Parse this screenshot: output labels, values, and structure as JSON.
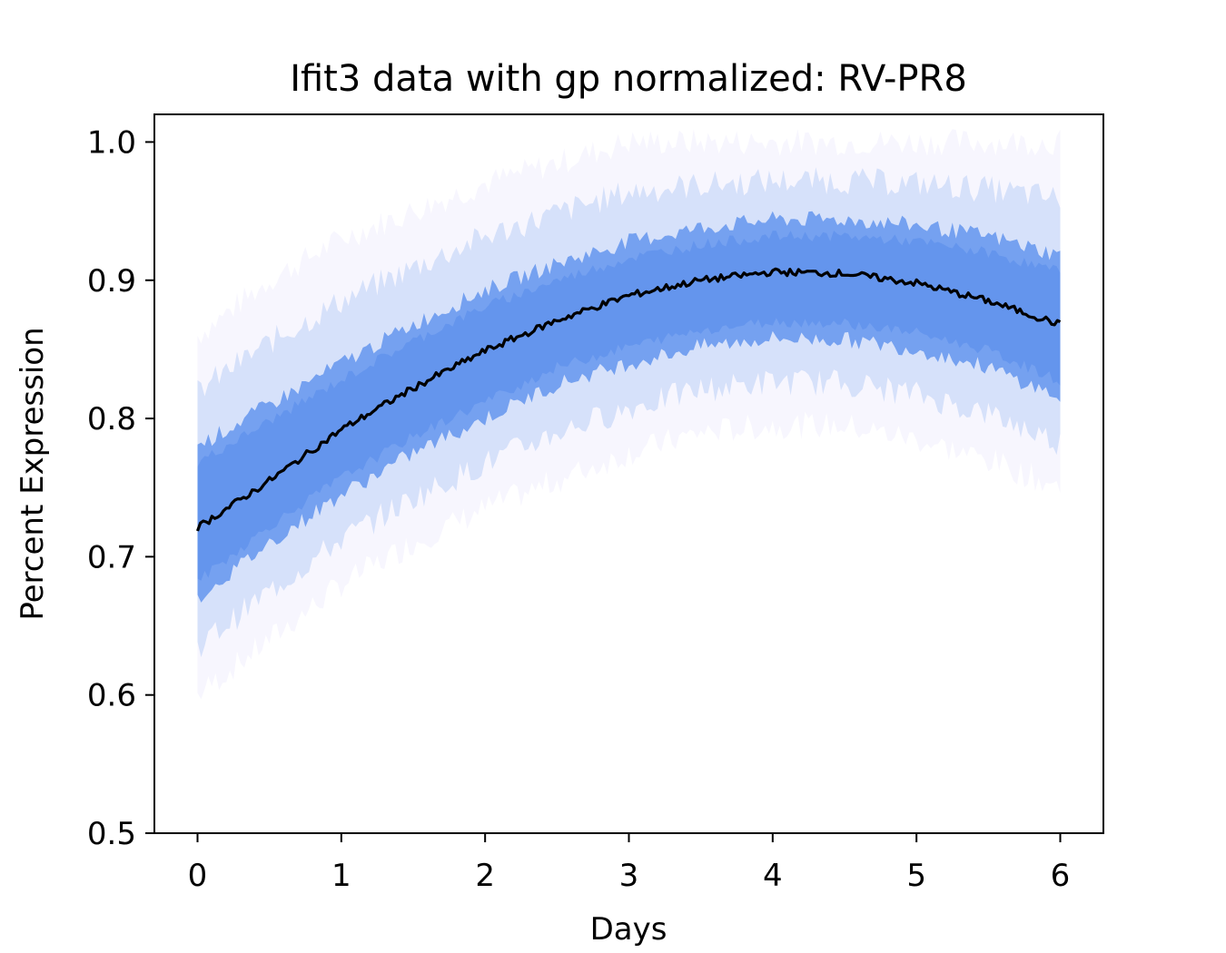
{
  "chart_data": {
    "type": "line",
    "title": "Ifit3 data with gp normalized: RV-PR8",
    "xlabel": "Days",
    "ylabel": "Percent Expression",
    "xlim": [
      -0.3,
      6.3
    ],
    "ylim": [
      0.5,
      1.02
    ],
    "x_ticks": [
      "0",
      "1",
      "2",
      "3",
      "4",
      "5",
      "6"
    ],
    "y_ticks": [
      "0.5",
      "0.6",
      "0.7",
      "0.8",
      "0.9",
      "1.0"
    ],
    "grid": false,
    "colors": {
      "band": "#6495ed",
      "band_faint": "#7b68ee",
      "mean": "#000000"
    },
    "mean_curve": {
      "x": [
        0,
        0.5,
        1,
        1.5,
        2,
        2.5,
        3,
        3.5,
        4,
        4.5,
        5,
        5.5,
        6
      ],
      "y": [
        0.721,
        0.755,
        0.792,
        0.822,
        0.849,
        0.871,
        0.889,
        0.9,
        0.906,
        0.905,
        0.898,
        0.885,
        0.868
      ]
    },
    "band_core": {
      "x": [
        0,
        0.5,
        1,
        1.5,
        2,
        2.5,
        3,
        3.5,
        4,
        4.5,
        5,
        5.5,
        6
      ],
      "lower": [
        0.67,
        0.71,
        0.745,
        0.775,
        0.8,
        0.825,
        0.84,
        0.852,
        0.858,
        0.857,
        0.85,
        0.837,
        0.815
      ],
      "upper": [
        0.78,
        0.81,
        0.84,
        0.868,
        0.893,
        0.912,
        0.928,
        0.938,
        0.944,
        0.944,
        0.94,
        0.932,
        0.918
      ]
    },
    "band_outer": {
      "x": [
        0,
        0.5,
        1,
        1.5,
        2,
        2.5,
        3,
        3.5,
        4,
        4.5,
        5,
        5.5,
        6
      ],
      "lower": [
        0.6,
        0.64,
        0.68,
        0.71,
        0.735,
        0.755,
        0.775,
        0.79,
        0.795,
        0.795,
        0.785,
        0.77,
        0.75
      ],
      "upper": [
        0.86,
        0.9,
        0.93,
        0.95,
        0.97,
        0.985,
        1.0,
        1.0,
        1.0,
        1.0,
        1.0,
        1.0,
        1.0
      ]
    }
  }
}
